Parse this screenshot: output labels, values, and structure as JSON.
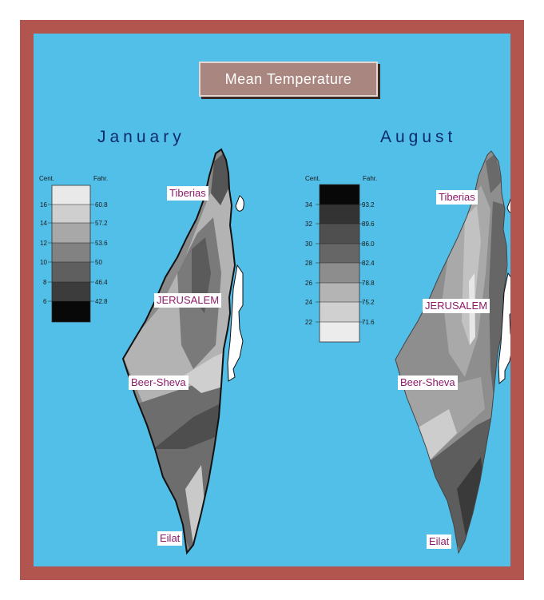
{
  "title": "Mean Temperature",
  "maps": [
    {
      "month": "January",
      "legend": {
        "header_c": "Cent.",
        "header_f": "Fahr.",
        "celsius": [
          "16",
          "14",
          "12",
          "10",
          "8",
          "6"
        ],
        "fahrenheit": [
          "60.8",
          "57.2",
          "53.6",
          "50",
          "46.4",
          "42.8"
        ],
        "band_colors": [
          "#e9e9e9",
          "#cfcfcf",
          "#a8a8a8",
          "#828282",
          "#5f5f5f",
          "#3c3c3c",
          "#080808"
        ]
      },
      "cities": [
        "Tiberias",
        "JERUSALEM",
        "Beer-Sheva",
        "Eilat"
      ]
    },
    {
      "month": "August",
      "legend": {
        "header_c": "Cent.",
        "header_f": "Fahr.",
        "celsius": [
          "34",
          "32",
          "30",
          "28",
          "26",
          "24",
          "22"
        ],
        "fahrenheit": [
          "93.2",
          "89.6",
          "86.0",
          "82.4",
          "78.8",
          "75.2",
          "71.6"
        ],
        "band_colors": [
          "#080808",
          "#333333",
          "#4f4f4f",
          "#666666",
          "#8d8d8d",
          "#b4b4b4",
          "#d0d0d0",
          "#ececec"
        ]
      },
      "cities": [
        "Tiberias",
        "JERUSALEM",
        "Beer-Sheva",
        "Eilat"
      ]
    }
  ],
  "colors": {
    "frame": "#b2554f",
    "sea": "#52bfe9",
    "title_box": "#a98780",
    "city_label": "#8c1a6a",
    "month_label": "#0b2a6e"
  }
}
